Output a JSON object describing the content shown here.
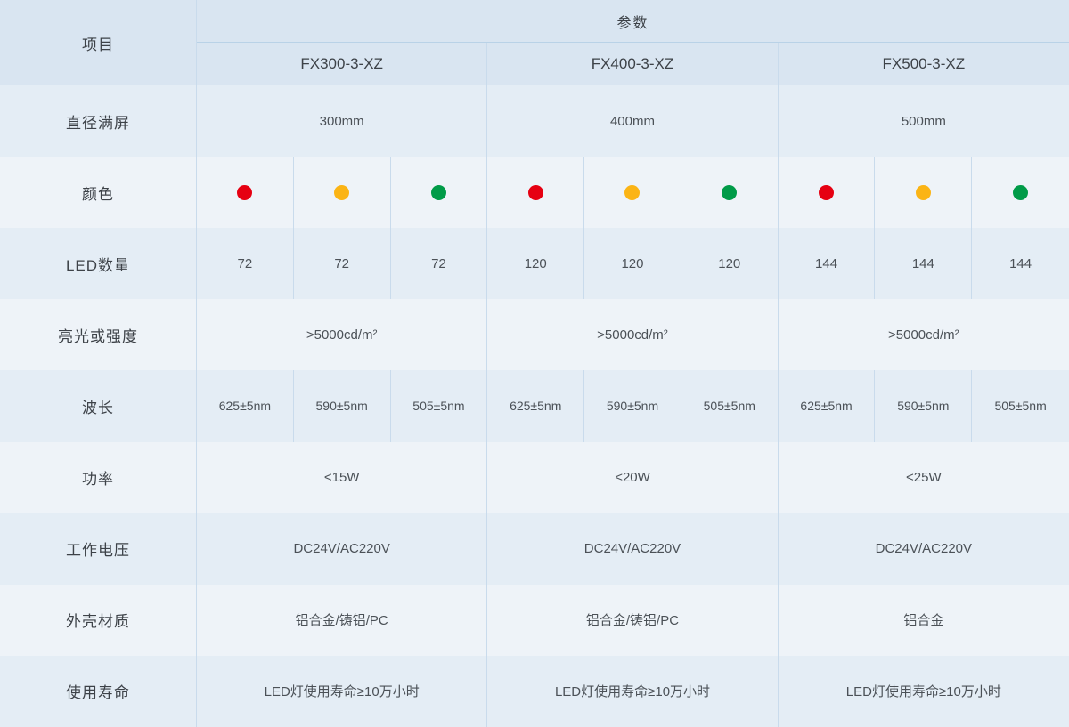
{
  "header": {
    "item": "项目",
    "param": "参数",
    "models": [
      "FX300-3-XZ",
      "FX400-3-XZ",
      "FX500-3-XZ"
    ]
  },
  "rows": {
    "diameter": {
      "label": "直径满屏",
      "values": [
        "300mm",
        "400mm",
        "500mm"
      ]
    },
    "color": {
      "label": "颜色",
      "dot_names": [
        "red",
        "yellow",
        "green",
        "red",
        "yellow",
        "green",
        "red",
        "yellow",
        "green"
      ]
    },
    "led_count": {
      "label": "LED数量",
      "values": [
        "72",
        "72",
        "72",
        "120",
        "120",
        "120",
        "144",
        "144",
        "144"
      ]
    },
    "brightness": {
      "label": "亮光或强度",
      "values": [
        ">5000cd/m²",
        ">5000cd/m²",
        ">5000cd/m²"
      ]
    },
    "wavelength": {
      "label": "波长",
      "values": [
        "625±5nm",
        "590±5nm",
        "505±5nm",
        "625±5nm",
        "590±5nm",
        "505±5nm",
        "625±5nm",
        "590±5nm",
        "505±5nm"
      ]
    },
    "power": {
      "label": "功率",
      "values": [
        "<15W",
        "<20W",
        "<25W"
      ]
    },
    "voltage": {
      "label": "工作电压",
      "values": [
        "DC24V/AC220V",
        "DC24V/AC220V",
        "DC24V/AC220V"
      ]
    },
    "material": {
      "label": "外壳材质",
      "values": [
        "铝合金/铸铝/PC",
        "铝合金/铸铝/PC",
        "铝合金"
      ]
    },
    "lifespan": {
      "label": "使用寿命",
      "values": [
        "LED灯使用寿命≥10万小时",
        "LED灯使用寿命≥10万小时",
        "LED灯使用寿命≥10万小时"
      ]
    }
  },
  "colors": {
    "dot_red": "#e60012",
    "dot_yellow": "#fbb415",
    "dot_green": "#009b48",
    "header_bg": "#d9e5f1",
    "row_bg_blue": "#e4edf5",
    "row_bg_light": "#eef3f8",
    "divider": "#c9dbec"
  }
}
